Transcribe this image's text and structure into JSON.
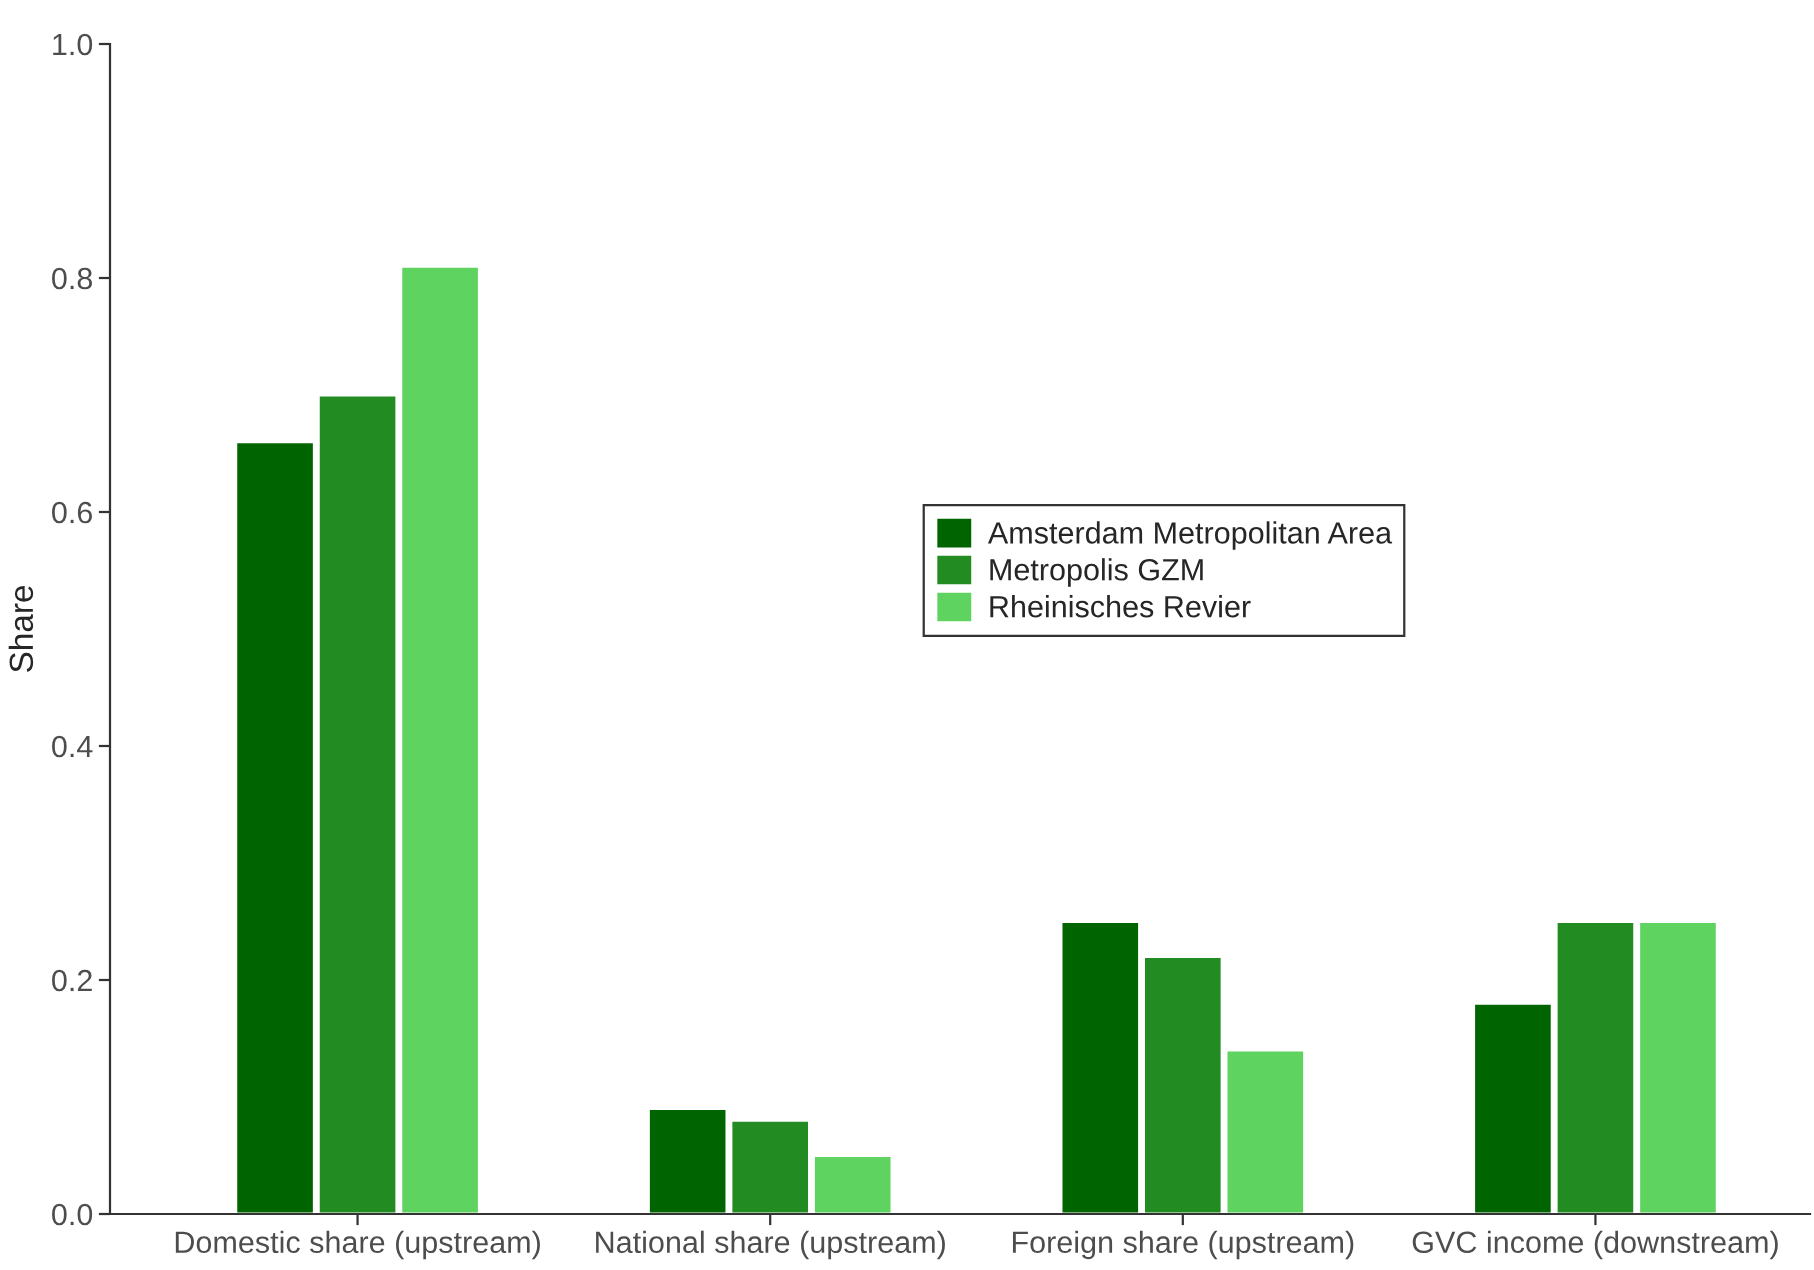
{
  "chart_data": {
    "type": "bar",
    "ylabel": "Share",
    "categories": [
      "Domestic share (upstream)",
      "National share (upstream)",
      "Foreign share (upstream)",
      "GVC income (downstream)"
    ],
    "series": [
      {
        "name": "Amsterdam Metropolitan Area",
        "color": "#006400",
        "values": [
          0.66,
          0.09,
          0.25,
          0.18
        ]
      },
      {
        "name": "Metropolis GZM",
        "color": "#228b22",
        "values": [
          0.7,
          0.08,
          0.22,
          0.25
        ]
      },
      {
        "name": "Rheinisches Revier",
        "color": "#5fd35f",
        "values": [
          0.81,
          0.05,
          0.14,
          0.25
        ]
      }
    ],
    "ylim": [
      0,
      1
    ],
    "yticks": [
      {
        "value": 0,
        "label": "0.0"
      },
      {
        "value": 0.2,
        "label": "0.2"
      },
      {
        "value": 0.4,
        "label": "0.4"
      },
      {
        "value": 0.6,
        "label": "0.6"
      },
      {
        "value": 0.8,
        "label": "0.8"
      },
      {
        "value": 1,
        "label": "1.0"
      }
    ],
    "grid": false,
    "legend": "center"
  }
}
